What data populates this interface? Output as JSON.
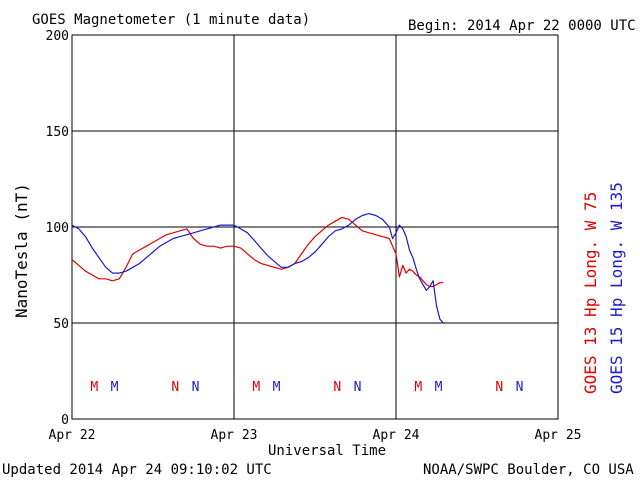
{
  "title": "GOES Magnetometer (1 minute data)",
  "begin": "Begin:  2014 Apr 22 0000 UTC",
  "updated": "Updated 2014 Apr 24 09:10:02 UTC",
  "source": "NOAA/SWPC Boulder, CO USA",
  "colors": {
    "goes13": "#e00000",
    "goes15": "#1a1acc"
  },
  "chart_data": {
    "type": "line",
    "title": "GOES Magnetometer (1 minute data)",
    "xlabel": "Universal Time",
    "ylabel": "NanoTesla (nT)",
    "xlim": [
      0,
      72
    ],
    "ylim": [
      0,
      200
    ],
    "xunit": "hours since 2014 Apr 22 0000 UTC",
    "xticks": [
      {
        "x": 0,
        "label": "Apr 22"
      },
      {
        "x": 24,
        "label": "Apr 23"
      },
      {
        "x": 48,
        "label": "Apr 24"
      },
      {
        "x": 72,
        "label": "Apr 25"
      }
    ],
    "yticks": [
      0,
      50,
      100,
      150,
      200
    ],
    "grid": true,
    "series": [
      {
        "name": "GOES 13 Hp  Long. W 75",
        "color": "#e00000",
        "x": [
          0,
          1,
          2,
          3,
          4,
          5,
          6,
          7,
          8,
          9,
          10,
          11,
          12,
          13,
          14,
          15,
          16,
          17,
          18,
          19,
          20,
          21,
          22,
          23,
          24,
          25,
          26,
          27,
          28,
          29,
          30,
          31,
          32,
          33,
          34,
          35,
          36,
          37,
          38,
          39,
          40,
          41,
          42,
          43,
          44,
          45,
          46,
          47,
          47.5,
          48,
          48.5,
          49,
          49.5,
          50,
          50.5,
          51,
          51.5,
          52,
          52.5,
          53,
          53.5,
          54,
          54.5,
          55
        ],
        "y": [
          83,
          80,
          77,
          75,
          73,
          73,
          72,
          73,
          79,
          86,
          88,
          90,
          92,
          94,
          96,
          97,
          98,
          99,
          94,
          91,
          90,
          90,
          89,
          90,
          90,
          89,
          86,
          83,
          81,
          80,
          79,
          78,
          79,
          81,
          86,
          91,
          95,
          98,
          101,
          103,
          105,
          104,
          101,
          98,
          97,
          96,
          95,
          94,
          90,
          86,
          74,
          80,
          76,
          78,
          77,
          75,
          74,
          72,
          70,
          69,
          69,
          70,
          71,
          71
        ]
      },
      {
        "name": "GOES 15 Hp  Long. W 135",
        "color": "#1a1acc",
        "x": [
          0,
          1,
          2,
          3,
          4,
          5,
          6,
          7,
          8,
          9,
          10,
          11,
          12,
          13,
          14,
          15,
          16,
          17,
          18,
          19,
          20,
          21,
          22,
          23,
          24,
          25,
          26,
          27,
          28,
          29,
          30,
          31,
          32,
          33,
          34,
          35,
          36,
          37,
          38,
          39,
          40,
          41,
          42,
          43,
          44,
          45,
          46,
          47,
          47.5,
          48,
          48.5,
          49,
          49.5,
          50,
          50.5,
          51,
          51.5,
          52,
          52.5,
          53,
          53.5,
          54,
          54.5,
          55
        ],
        "y": [
          101,
          99,
          95,
          89,
          84,
          79,
          76,
          76,
          77,
          79,
          81,
          84,
          87,
          90,
          92,
          94,
          95,
          96,
          97,
          98,
          99,
          100,
          101,
          101,
          101,
          99,
          97,
          93,
          89,
          85,
          82,
          79,
          79,
          81,
          82,
          84,
          87,
          91,
          95,
          98,
          99,
          101,
          104,
          106,
          107,
          106,
          104,
          100,
          94,
          97,
          101,
          99,
          95,
          88,
          84,
          78,
          73,
          70,
          67,
          69,
          72,
          59,
          52,
          50
        ]
      }
    ],
    "annotations": [
      {
        "text": "M",
        "x": 3.3,
        "color": "#e00000"
      },
      {
        "text": "M",
        "x": 6.3,
        "color": "#1a1acc"
      },
      {
        "text": "N",
        "x": 15.3,
        "color": "#e00000"
      },
      {
        "text": "N",
        "x": 18.3,
        "color": "#1a1acc"
      },
      {
        "text": "M",
        "x": 27.3,
        "color": "#e00000"
      },
      {
        "text": "M",
        "x": 30.3,
        "color": "#1a1acc"
      },
      {
        "text": "N",
        "x": 39.3,
        "color": "#e00000"
      },
      {
        "text": "N",
        "x": 42.3,
        "color": "#1a1acc"
      },
      {
        "text": "M",
        "x": 51.3,
        "color": "#e00000"
      },
      {
        "text": "M",
        "x": 54.3,
        "color": "#1a1acc"
      },
      {
        "text": "N",
        "x": 63.3,
        "color": "#e00000"
      },
      {
        "text": "N",
        "x": 66.3,
        "color": "#1a1acc"
      }
    ],
    "legend": [
      {
        "text": "GOES 13 Hp  Long. W 75",
        "color": "#e00000"
      },
      {
        "text": "GOES 15 Hp  Long. W 135",
        "color": "#1a1acc"
      }
    ]
  }
}
